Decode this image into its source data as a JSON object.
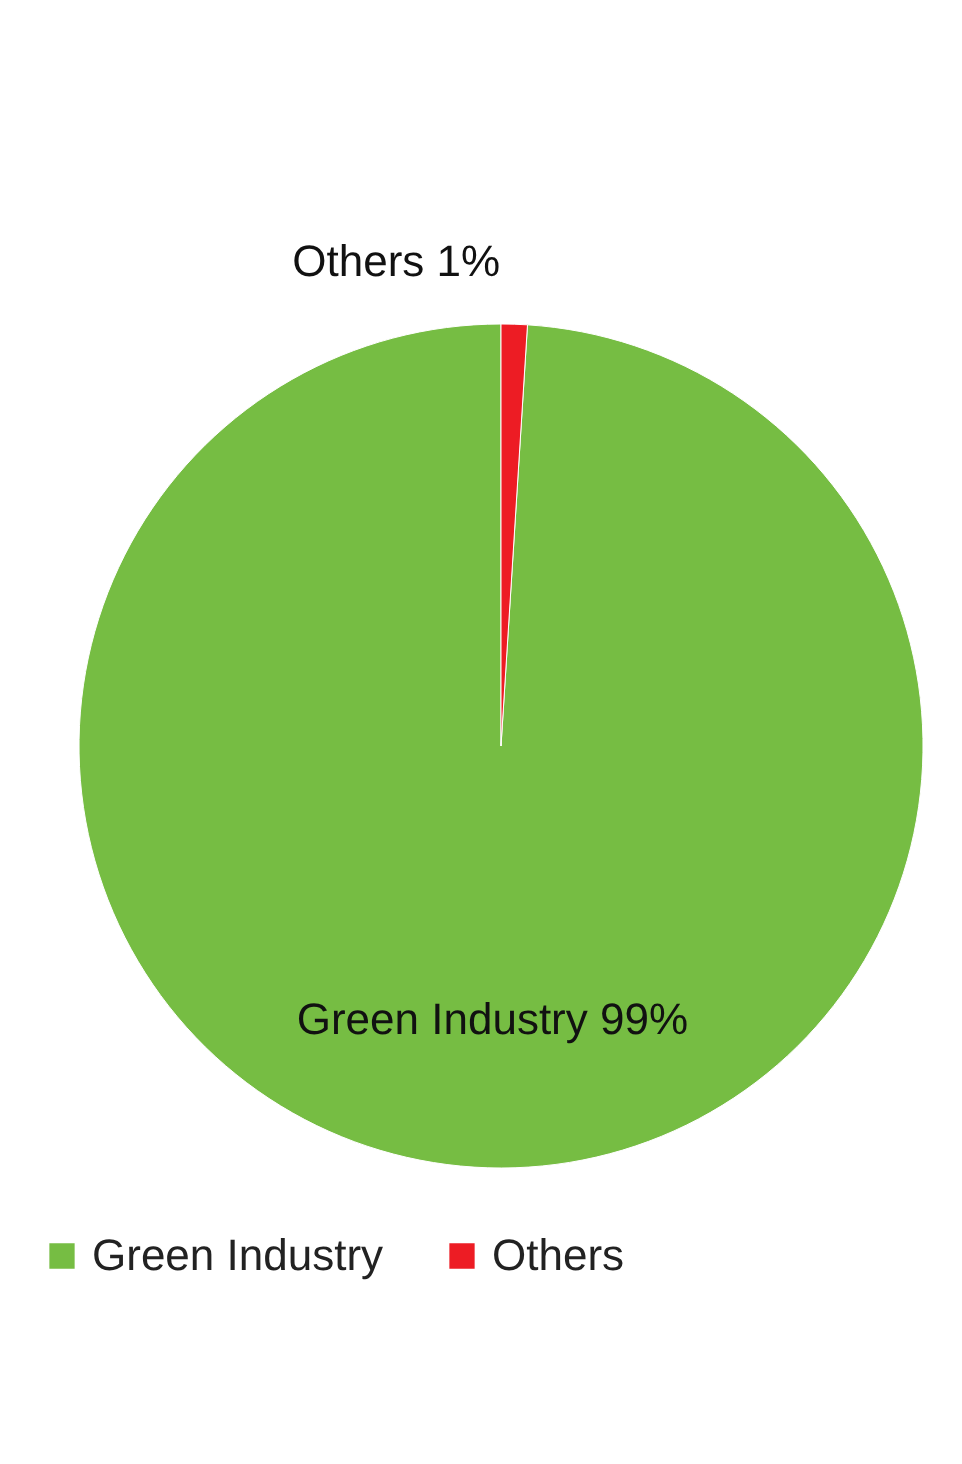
{
  "chart_data": {
    "type": "pie",
    "categories": [
      "Green Industry",
      "Others"
    ],
    "values": [
      99,
      1
    ],
    "colors": [
      "#76bd43",
      "#ed1c24"
    ],
    "value_labels": [
      "99%",
      "1%"
    ],
    "legend": "bottom"
  }
}
